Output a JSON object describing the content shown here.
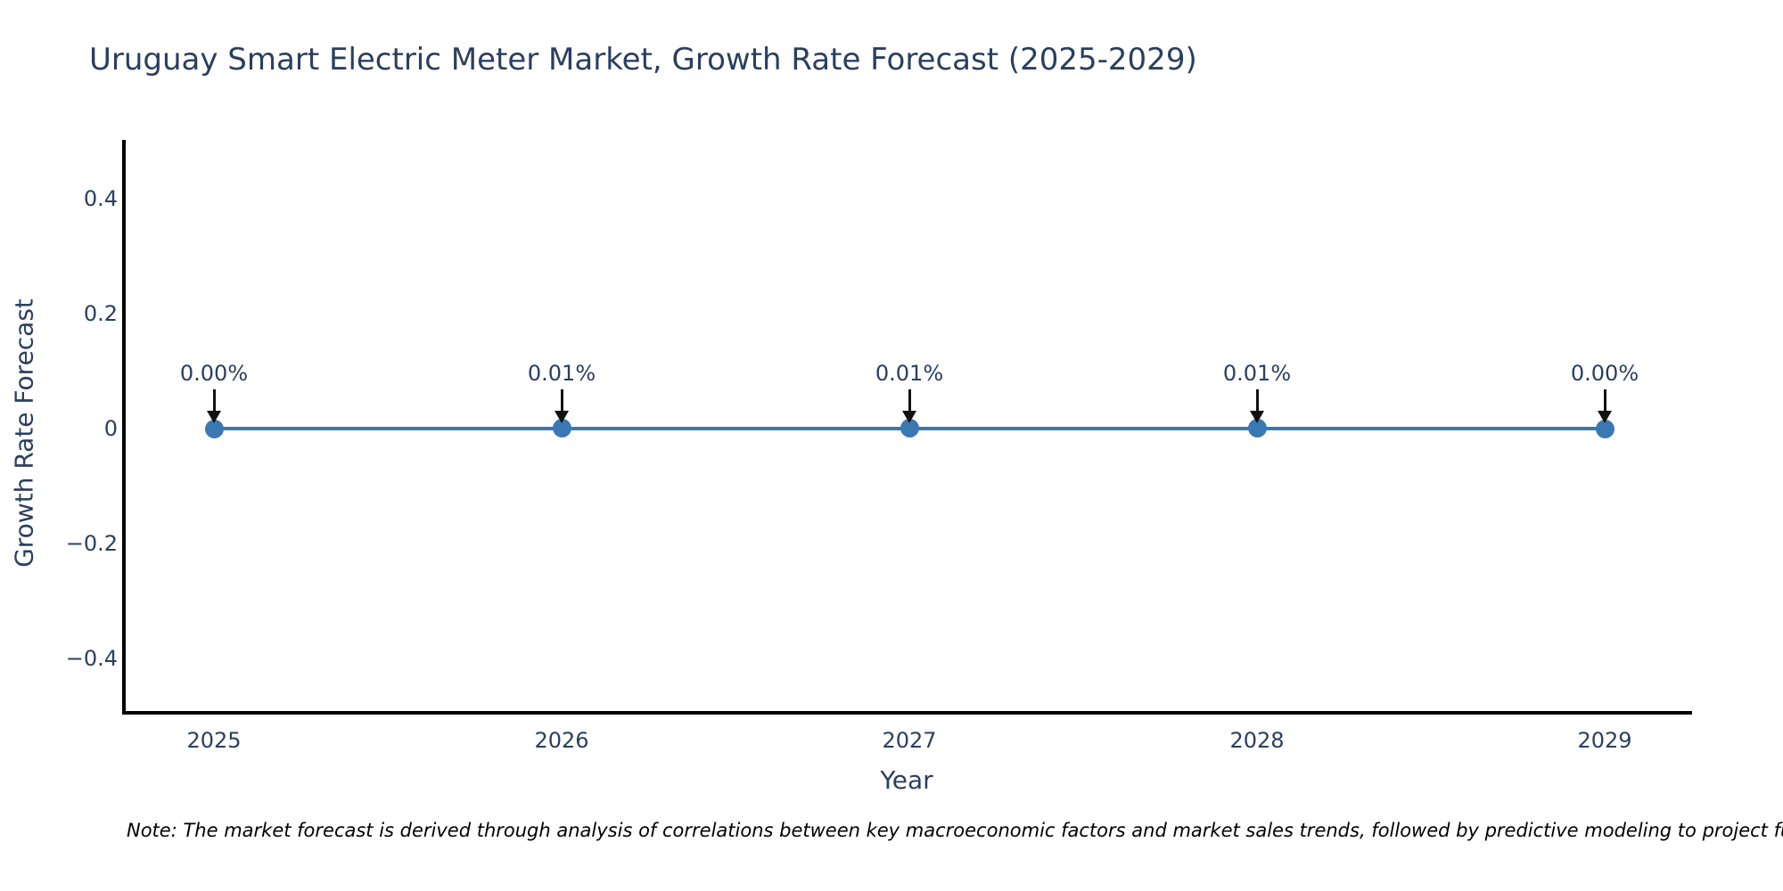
{
  "chart_data": {
    "type": "line",
    "title": "Uruguay Smart Electric Meter Market, Growth Rate Forecast (2025-2029)",
    "xlabel": "Year",
    "ylabel": "Growth Rate Forecast",
    "x": [
      "2025",
      "2026",
      "2027",
      "2028",
      "2029"
    ],
    "series": [
      {
        "name": "Growth Rate Forecast",
        "values": [
          0.0,
          0.0001,
          0.0001,
          0.0001,
          0.0
        ]
      }
    ],
    "point_labels": [
      "0.00%",
      "0.01%",
      "0.01%",
      "0.01%",
      "0.00%"
    ],
    "yticks": [
      {
        "value": 0.4,
        "label": "0.4"
      },
      {
        "value": 0.2,
        "label": "0.2"
      },
      {
        "value": 0,
        "label": "0"
      },
      {
        "value": -0.2,
        "label": "−0.2"
      },
      {
        "value": -0.4,
        "label": "−0.4"
      }
    ],
    "ylim": [
      -0.5,
      0.51
    ],
    "grid": false,
    "legend": "none",
    "marker": "circle",
    "annotation_arrow": "down"
  },
  "note": {
    "text": "Note: The market forecast is derived through analysis of correlations between key macroeconomic factors and market sales trends, followed by predictive modeling to project future sa"
  },
  "colors": {
    "text": "#2a3f5f",
    "axis": "#000000",
    "line": "#3a78b3",
    "arrow": "#111111",
    "note": "#000000",
    "background": "#ffffff"
  }
}
